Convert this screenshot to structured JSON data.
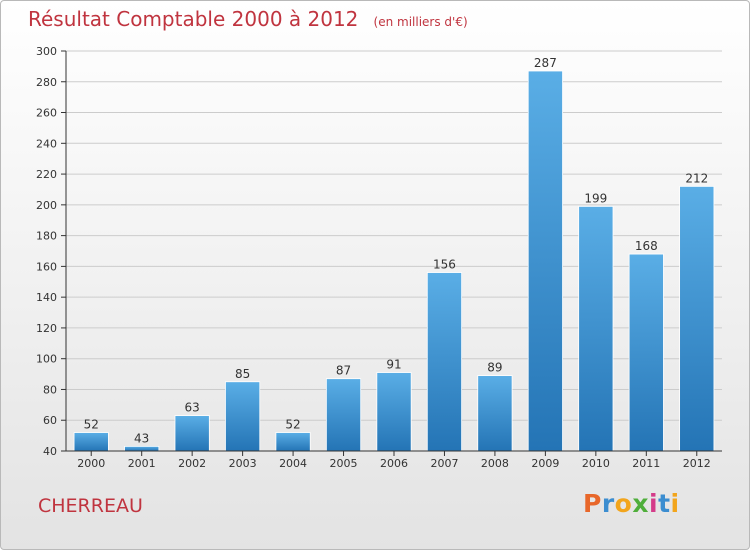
{
  "chart_data": {
    "type": "bar",
    "title": "Résultat Comptable 2000 à 2012",
    "subtitle": "(en milliers d'€)",
    "categories": [
      "2000",
      "2001",
      "2002",
      "2003",
      "2004",
      "2005",
      "2006",
      "2007",
      "2008",
      "2009",
      "2010",
      "2011",
      "2012"
    ],
    "values": [
      52,
      43,
      63,
      85,
      52,
      87,
      91,
      156,
      89,
      287,
      199,
      168,
      212
    ],
    "ylim": [
      40,
      300
    ],
    "yticks": [
      40,
      60,
      80,
      100,
      120,
      140,
      160,
      180,
      200,
      220,
      240,
      260,
      280,
      300
    ],
    "grid": true,
    "legend": "none",
    "bar_color_top": "#5aaee6",
    "bar_color_bottom": "#2474b5"
  },
  "footer": {
    "commune": "CHERREAU",
    "brand": [
      "P",
      "r",
      "o",
      "x",
      "i",
      "t",
      "i"
    ],
    "brand_colors": [
      "#e8672a",
      "#3b8dd0",
      "#f2a51c",
      "#4fae3b",
      "#d43c8a",
      "#3b8dd0",
      "#f2a51c"
    ]
  },
  "colors": {
    "title": "#c0343f",
    "axis": "#333333",
    "grid": "#cccccc"
  }
}
